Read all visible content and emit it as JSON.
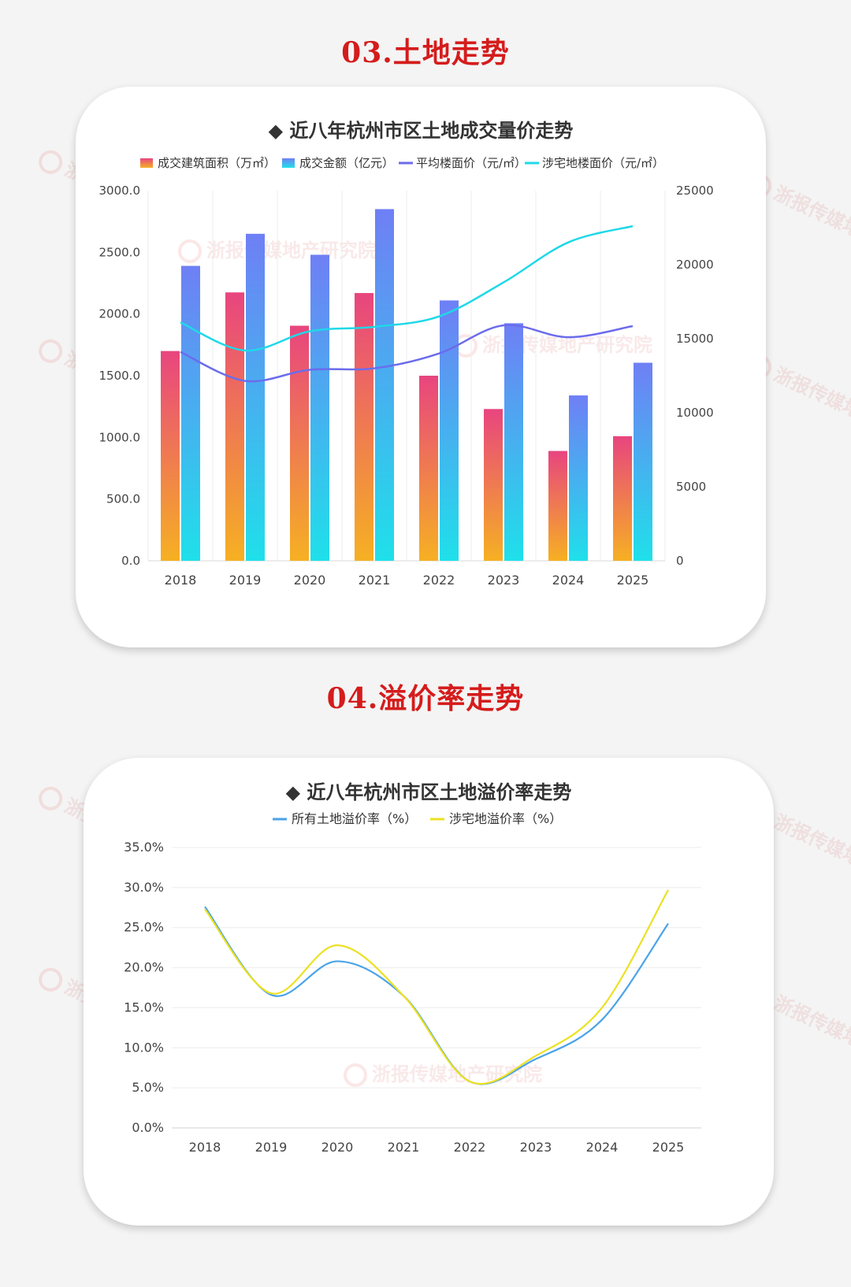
{
  "section1": {
    "title": "03.土地走势"
  },
  "section2": {
    "title": "04.溢价率走势"
  },
  "colors": {
    "title_red": "#d51c1c",
    "area_top": "#e8457f",
    "area_bottom": "#f6b023",
    "amount_top": "#6f7ff5",
    "amount_bottom": "#1fe0ea",
    "avg_price": "#6b6cec",
    "res_price": "#1fd8e8",
    "premium_all": "#4aa3e8",
    "premium_res": "#ece123"
  },
  "watermark": {
    "text": "浙报传媒地产研究院"
  },
  "chart_data": [
    {
      "type": "bar",
      "title": "◆ 近八年杭州市区土地成交量价走势",
      "categories": [
        "2018",
        "2019",
        "2020",
        "2021",
        "2022",
        "2023",
        "2024",
        "2025"
      ],
      "y_left": {
        "ticks": [
          "0.0",
          "500.0",
          "1000.0",
          "1500.0",
          "2000.0",
          "2500.0",
          "3000.0"
        ],
        "min": 0,
        "max": 3000
      },
      "y_right": {
        "ticks": [
          "0",
          "5000",
          "10000",
          "15000",
          "20000",
          "25000"
        ],
        "min": 0,
        "max": 25000
      },
      "grid": true,
      "legend_position": "top",
      "series": [
        {
          "name": "成交建筑面积（万㎡）",
          "type": "bar",
          "axis": "left",
          "values": [
            1700,
            2175,
            1905,
            2170,
            1500,
            1230,
            890,
            1010
          ]
        },
        {
          "name": "成交金额（亿元）",
          "type": "bar",
          "axis": "left",
          "values": [
            2390,
            2650,
            2480,
            2850,
            2110,
            1925,
            1340,
            1605
          ]
        },
        {
          "name": "平均楼面价（元/㎡）",
          "type": "line",
          "axis": "right",
          "values": [
            14100,
            12150,
            12900,
            13000,
            14000,
            15900,
            15100,
            15850
          ]
        },
        {
          "name": "涉宅地楼面价（元/㎡）",
          "type": "line",
          "axis": "right",
          "values": [
            16100,
            14200,
            15500,
            15800,
            16500,
            18800,
            21500,
            22600
          ]
        }
      ]
    },
    {
      "type": "line",
      "title": "◆ 近八年杭州市区土地溢价率走势",
      "categories": [
        "2018",
        "2019",
        "2020",
        "2021",
        "2022",
        "2023",
        "2024",
        "2025"
      ],
      "y": {
        "ticks": [
          "0.0%",
          "5.0%",
          "10.0%",
          "15.0%",
          "20.0%",
          "25.0%",
          "30.0%",
          "35.0%"
        ],
        "min": 0,
        "max": 35
      },
      "grid": true,
      "legend_position": "top",
      "series": [
        {
          "name": "所有土地溢价率（%）",
          "values": [
            27.6,
            16.6,
            20.8,
            16.5,
            5.8,
            8.6,
            13.5,
            25.5
          ]
        },
        {
          "name": "涉宅地溢价率（%）",
          "values": [
            27.3,
            16.8,
            22.8,
            16.5,
            5.8,
            9.0,
            15.0,
            29.7
          ]
        }
      ]
    }
  ]
}
